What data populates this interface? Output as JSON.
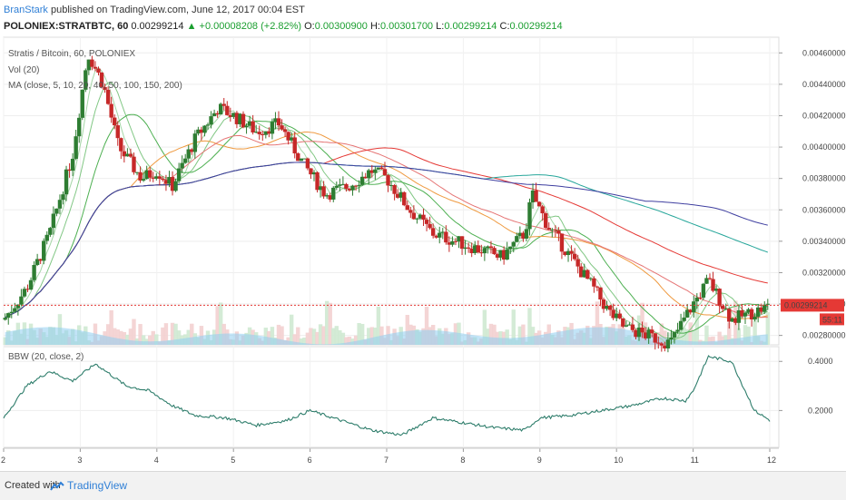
{
  "header": {
    "author": "BranStark",
    "published": "published on TradingView.com, June 12, 2017 00:04 EST",
    "symbol": "POLONIEX:STRATBTC, 60",
    "last": "0.00299214",
    "change": "+0.00008208 (+2.82%)",
    "o_label": "O:",
    "o": "0.00300900",
    "h_label": "H:",
    "h": "0.00301700",
    "l_label": "L:",
    "l": "0.00299214",
    "c_label": "C:",
    "c": "0.00299214"
  },
  "legend": {
    "title": "Stratis / Bitcoin, 60, POLONIEX",
    "vol": "Vol (20)",
    "ma": "MA (close, 5, 10, 20, 40, 50, 100, 150, 200)",
    "bbw": "BBW (20, close, 2)"
  },
  "price_tag": {
    "value": "0.00299214",
    "countdown": "55:11"
  },
  "footer": {
    "created": "Created with",
    "brand": "TradingView"
  },
  "colors": {
    "up": "#2e7d32",
    "down": "#c62828",
    "vol": "#8fcdf0",
    "bbw": "#2e7d6b",
    "ma5": "#a5d6a7",
    "ma10": "#81c784",
    "ma20": "#4caf50",
    "ma40": "#ef9a40",
    "ma50": "#e57373",
    "ma100": "#e53935",
    "ma150": "#26a69a",
    "ma200": "#3f3fa0"
  },
  "chart_data": {
    "type": "line",
    "price_axis_ticks": [
      "0.00460000",
      "0.00440000",
      "0.00420000",
      "0.00400000",
      "0.00380000",
      "0.00360000",
      "0.00340000",
      "0.00320000",
      "0.00300000",
      "0.00280000"
    ],
    "price_ylim": [
      0.00274,
      0.0047
    ],
    "bbw_axis_ticks": [
      "0.4000",
      "0.2000"
    ],
    "bbw_ylim": [
      0.05,
      0.46
    ],
    "date_ticks": [
      "2",
      "3",
      "4",
      "5",
      "6",
      "7",
      "8",
      "9",
      "10",
      "11",
      "12"
    ],
    "xlim": [
      2,
      12
    ],
    "price_close_approx": {
      "x": [
        2.0,
        2.3,
        2.6,
        2.9,
        3.1,
        3.3,
        3.5,
        3.8,
        4.0,
        4.2,
        4.5,
        4.8,
        5.0,
        5.3,
        5.6,
        5.9,
        6.2,
        6.5,
        6.8,
        7.0,
        7.3,
        7.6,
        7.9,
        8.2,
        8.5,
        8.8,
        8.9,
        9.1,
        9.4,
        9.7,
        9.9,
        10.1,
        10.4,
        10.7,
        11.0,
        11.2,
        11.5,
        11.8,
        12.0
      ],
      "y": [
        0.0029,
        0.0031,
        0.00345,
        0.00395,
        0.0046,
        0.0044,
        0.004,
        0.0038,
        0.00385,
        0.00375,
        0.00405,
        0.00425,
        0.0042,
        0.0041,
        0.00415,
        0.0039,
        0.0037,
        0.00375,
        0.00385,
        0.0038,
        0.0036,
        0.00345,
        0.0034,
        0.00335,
        0.0033,
        0.00345,
        0.0037,
        0.0035,
        0.0033,
        0.0031,
        0.00295,
        0.00285,
        0.0028,
        0.00275,
        0.003,
        0.00315,
        0.0029,
        0.00295,
        0.00299
      ]
    },
    "bbw_approx": {
      "x": [
        2.0,
        2.3,
        2.6,
        2.9,
        3.2,
        3.6,
        3.9,
        4.2,
        4.5,
        4.9,
        5.3,
        5.7,
        6.0,
        6.4,
        6.8,
        7.2,
        7.6,
        8.0,
        8.4,
        8.8,
        9.0,
        9.4,
        9.8,
        10.2,
        10.6,
        10.9,
        11.0,
        11.2,
        11.5,
        11.8,
        12.0
      ],
      "y": [
        0.17,
        0.3,
        0.36,
        0.32,
        0.39,
        0.3,
        0.28,
        0.22,
        0.18,
        0.17,
        0.14,
        0.16,
        0.2,
        0.16,
        0.12,
        0.1,
        0.17,
        0.15,
        0.13,
        0.12,
        0.17,
        0.18,
        0.2,
        0.22,
        0.25,
        0.24,
        0.28,
        0.42,
        0.4,
        0.2,
        0.16
      ]
    }
  }
}
